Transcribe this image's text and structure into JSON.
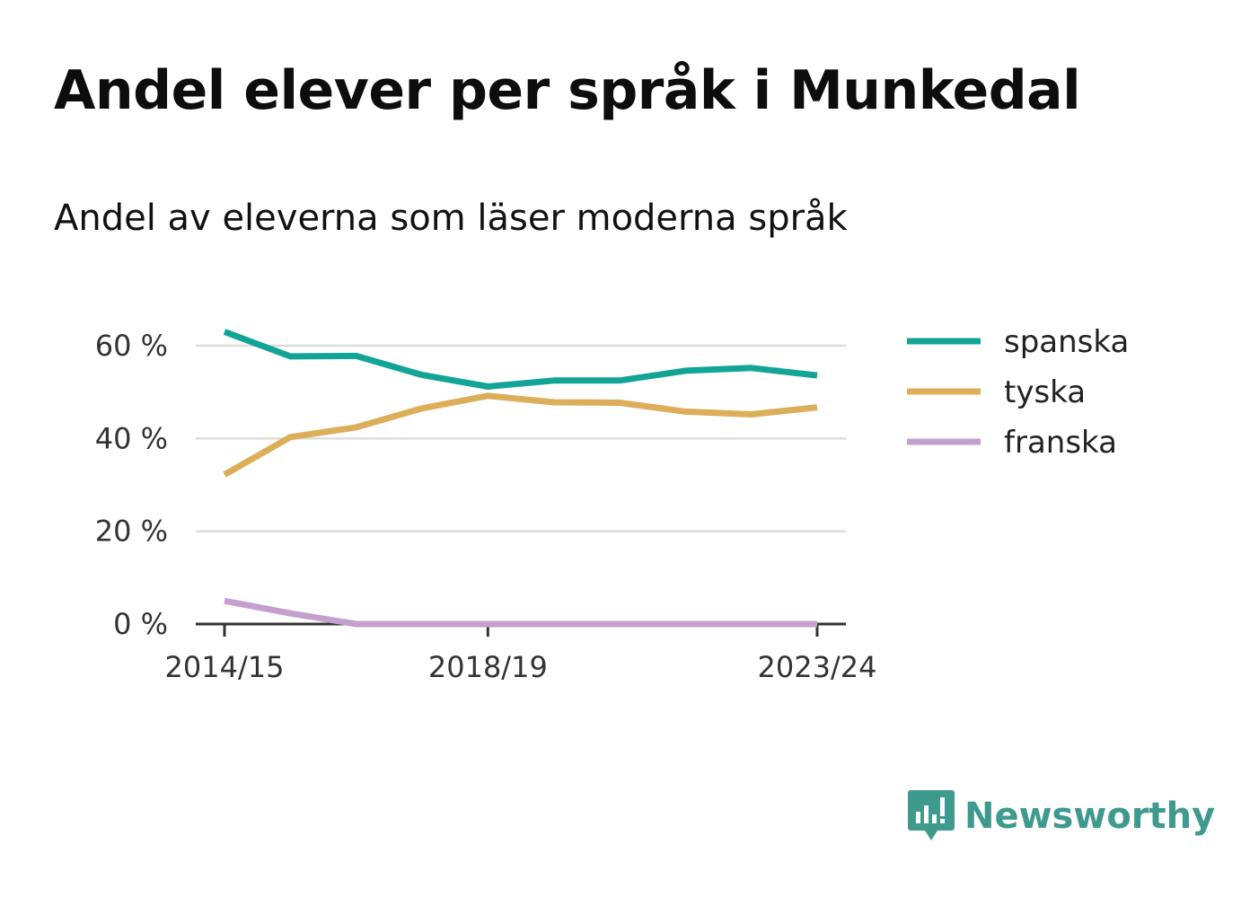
{
  "title": "Andel elever per språk i Munkedal",
  "subtitle": "Andel av eleverna som läser moderna språk",
  "brand": {
    "name": "Newsworthy",
    "icon": "newsworthy-logo-icon",
    "color": "#3f9a8e"
  },
  "chart_data": {
    "type": "line",
    "x": [
      "2014/15",
      "2015/16",
      "2016/17",
      "2017/18",
      "2018/19",
      "2019/20",
      "2020/21",
      "2021/22",
      "2022/23",
      "2023/24"
    ],
    "x_tick_labels": [
      "2014/15",
      "2018/19",
      "2023/24"
    ],
    "y_ticks": [
      0,
      20,
      40,
      60
    ],
    "y_tick_labels": [
      "0 %",
      "20 %",
      "40 %",
      "60 %"
    ],
    "ylim": [
      0,
      63
    ],
    "grid": true,
    "legend_position": "right",
    "series": [
      {
        "name": "spanska",
        "color": "#12a496",
        "values": [
          63,
          57.7,
          57.8,
          53.7,
          51.2,
          52.5,
          52.5,
          54.6,
          55.2,
          53.6
        ]
      },
      {
        "name": "tyska",
        "color": "#dcae59",
        "values": [
          32.2,
          40.3,
          42.4,
          46.5,
          49.2,
          47.8,
          47.7,
          45.8,
          45.2,
          46.7
        ]
      },
      {
        "name": "franska",
        "color": "#c49fcf",
        "values": [
          5,
          2.3,
          0,
          0,
          0,
          0,
          0,
          0,
          0,
          0
        ]
      }
    ]
  }
}
